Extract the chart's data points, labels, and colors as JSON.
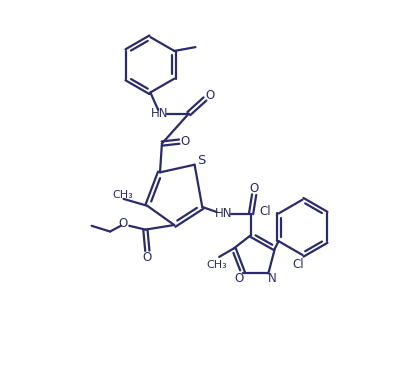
{
  "bg_color": "#ffffff",
  "line_color": "#2b2b6b",
  "line_width": 1.6,
  "font_size": 8.5,
  "figsize": [
    3.93,
    3.87
  ],
  "dpi": 100,
  "xlim": [
    0,
    10
  ],
  "ylim": [
    0,
    10
  ]
}
